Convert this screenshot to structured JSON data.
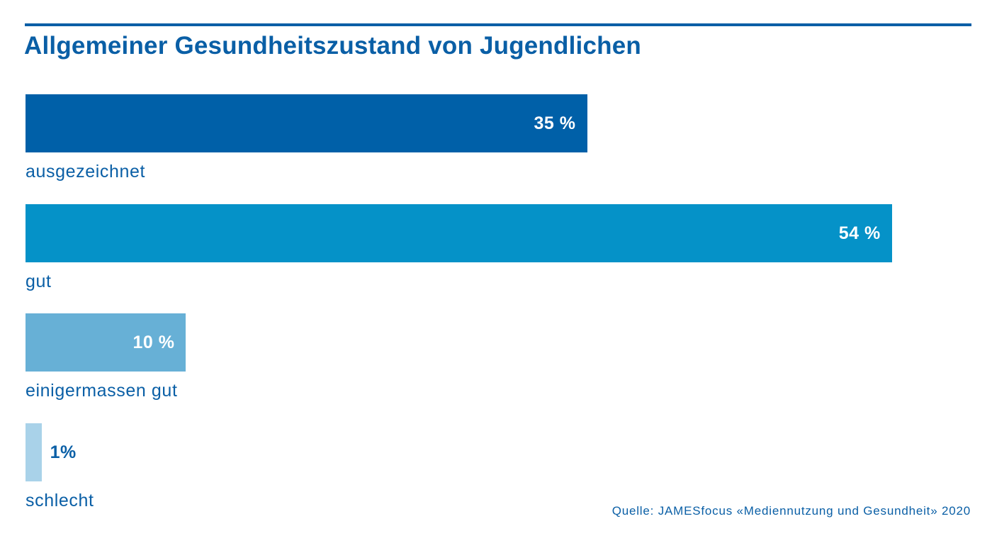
{
  "title": "Allgemeiner Gesundheitszustand von Jugendlichen",
  "source": "Quelle: JAMESfocus «Mediennutzung und Gesundheit» 2020",
  "chart_data": {
    "type": "bar",
    "orientation": "horizontal",
    "title": "Allgemeiner Gesundheitszustand von Jugendlichen",
    "categories": [
      "ausgezeichnet",
      "gut",
      "einigermassen gut",
      "schlecht"
    ],
    "values": [
      35,
      54,
      10,
      1
    ],
    "value_labels": [
      "35 %",
      "54 %",
      "10 %",
      "1%"
    ],
    "unit": "%",
    "xlim": [
      0,
      59
    ],
    "grid": false,
    "legend": "none",
    "colors": [
      "#0060a8",
      "#0592c8",
      "#67b0d6",
      "#a9d2e9"
    ],
    "label_color": "#0a5fa6",
    "value_label_inside_color": "#ffffff"
  }
}
